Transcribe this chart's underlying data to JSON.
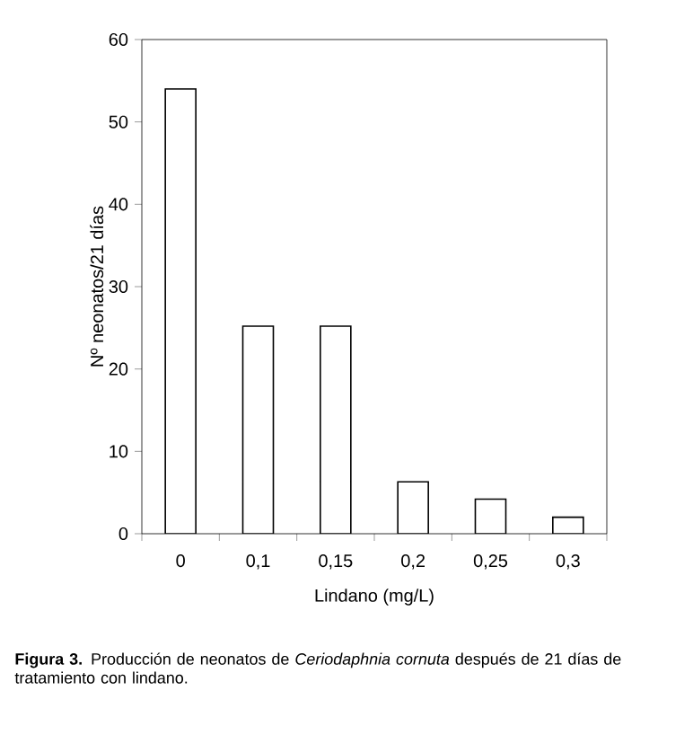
{
  "chart_data": {
    "type": "bar",
    "xlabel": "Lindano (mg/L)",
    "ylabel": "Nº neonatos/21 días",
    "categories": [
      "0",
      "0,1",
      "0,15",
      "0,2",
      "0,25",
      "0,3"
    ],
    "values": [
      54,
      25.2,
      25.2,
      6.3,
      4.2,
      2.0
    ],
    "color": "#ffffff",
    "ylim": [
      0,
      60
    ],
    "yticks": [
      0,
      10,
      20,
      30,
      40,
      50,
      60
    ],
    "grid": false,
    "annotations": [
      "**Figura 3.** Producción de neonatos de *Ceriodaphnia cornuta* después de 21 días de tratamiento con lindano."
    ]
  }
}
